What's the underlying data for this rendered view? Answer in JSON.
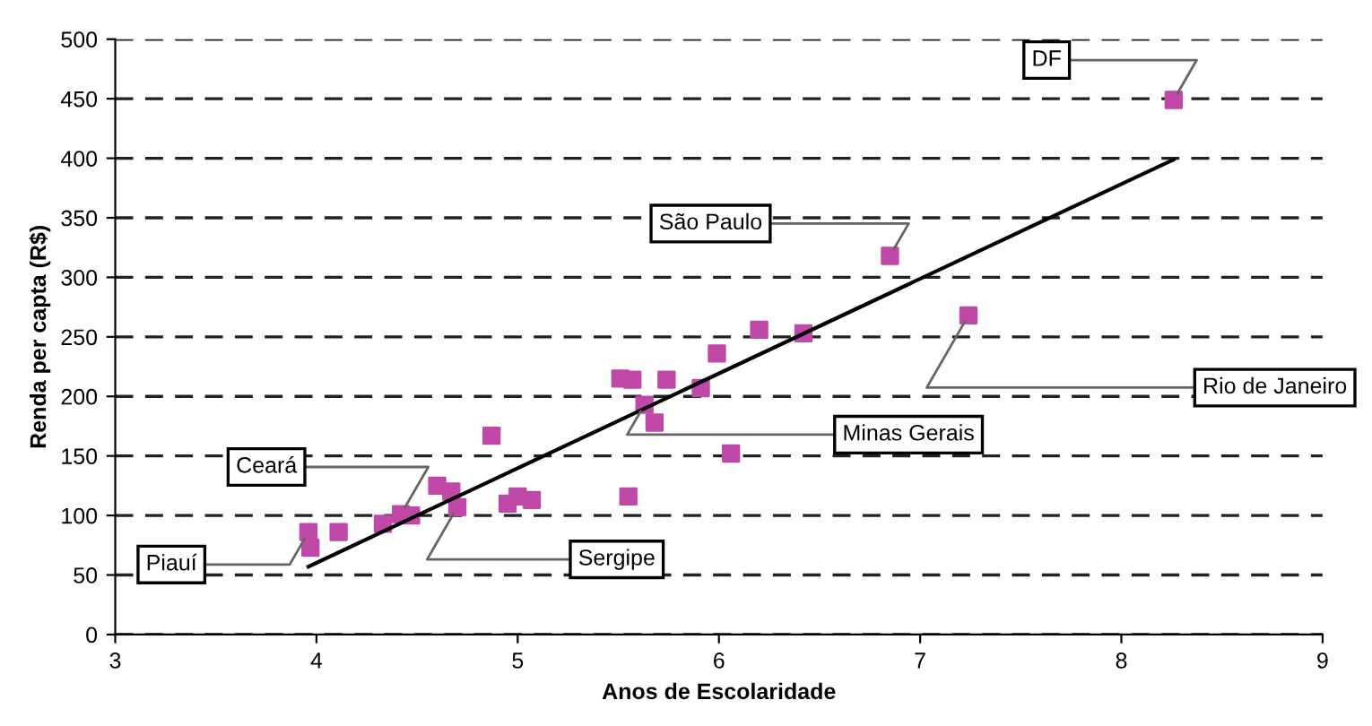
{
  "chart_data": {
    "type": "scatter",
    "xlabel": "Anos de Escolaridade",
    "ylabel": "Renda per capta (R$)",
    "x": [
      3.96,
      3.97,
      4.11,
      4.33,
      4.42,
      4.47,
      4.6,
      4.67,
      4.7,
      4.87,
      4.95,
      5.0,
      5.07,
      5.55,
      5.51,
      5.57,
      5.74,
      5.63,
      5.68,
      5.91,
      5.99,
      6.2,
      6.42,
      6.06,
      6.85,
      7.24,
      8.26
    ],
    "series": [
      {
        "color": "#c048a8",
        "values": [
          86,
          73,
          86,
          93,
          101,
          100,
          125,
          120,
          107,
          167,
          110,
          116,
          113,
          116,
          215,
          214,
          214,
          193,
          178,
          207,
          236,
          256,
          253,
          152,
          318,
          268,
          449
        ],
        "marker": "square"
      },
      {
        "type": "line",
        "color": "#000000",
        "x": [
          3.96,
          8.26
        ],
        "values": [
          57,
          399
        ],
        "marker": "none",
        "line_style": "solid"
      }
    ],
    "annotations": [
      {
        "text": "Piauí",
        "x": 3.96,
        "y": 86
      },
      {
        "text": "Ceará",
        "x": 4.42,
        "y": 101
      },
      {
        "text": "Sergipe",
        "x": 4.7,
        "y": 107
      },
      {
        "text": "São Paulo",
        "x": 6.85,
        "y": 318
      },
      {
        "text": "Minas Gerais",
        "x": 5.63,
        "y": 193
      },
      {
        "text": "Rio de Janeiro",
        "x": 7.24,
        "y": 268
      },
      {
        "text": "DF",
        "x": 8.26,
        "y": 449
      }
    ],
    "xlim": [
      3,
      9
    ],
    "xticks": [
      3,
      4,
      5,
      6,
      7,
      8,
      9
    ],
    "ylim": [
      0,
      500
    ],
    "yticks": [
      0,
      50,
      100,
      150,
      200,
      250,
      300,
      350,
      400,
      450,
      500
    ],
    "grid": "y",
    "legend": false
  }
}
